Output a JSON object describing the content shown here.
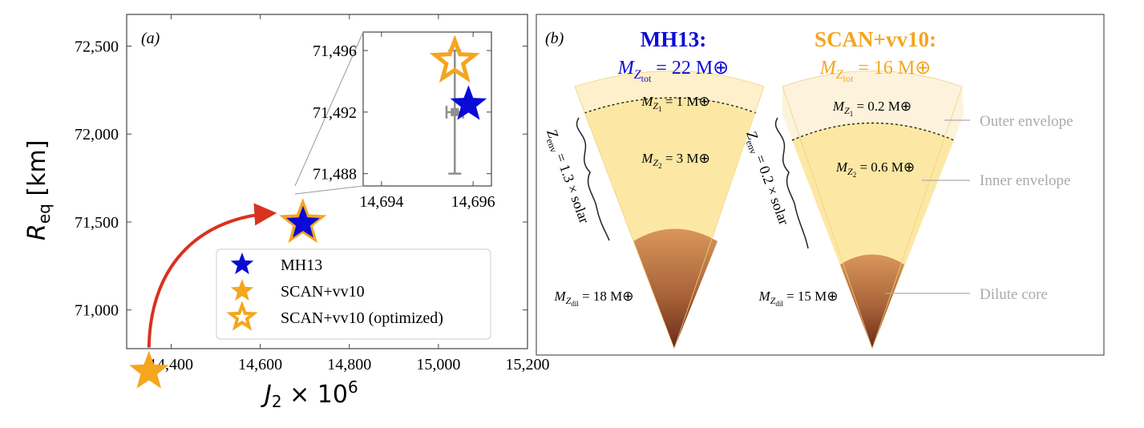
{
  "colors": {
    "mh13": "#0a0ad6",
    "scan": "#f5a51e",
    "arrow": "#d83220",
    "error": "#8f8f8f",
    "label_gray": "#aaaaaa"
  },
  "panel_a": {
    "label": "(a)",
    "xlabel_main": "J",
    "xlabel_sub": "2",
    "xlabel_rest": " × 10",
    "xlabel_sup": "6",
    "ylabel_main": "R",
    "ylabel_sub": "eq",
    "ylabel_rest": " [km]",
    "legend": [
      {
        "label": "MH13",
        "marker": "star-filled-blue"
      },
      {
        "label": "SCAN+vv10",
        "marker": "star-filled-orange"
      },
      {
        "label": "SCAN+vv10 (optimized)",
        "marker": "star-open-orange"
      }
    ]
  },
  "chart_data": [
    {
      "type": "scatter",
      "title": "",
      "xlabel": "J2 × 10^6",
      "ylabel": "R_eq [km]",
      "xlim": [
        14300,
        15200
      ],
      "ylim": [
        70780,
        72680
      ],
      "xticks": [
        14400,
        14600,
        14800,
        15000,
        15200
      ],
      "xtick_labels": [
        "14,400",
        "14,600",
        "14,800",
        "15,000",
        "15,200"
      ],
      "yticks": [
        71000,
        71500,
        72000,
        72500
      ],
      "ytick_labels": [
        "71,000",
        "71,500",
        "72,000",
        "72,500"
      ],
      "series": [
        {
          "name": "MH13",
          "x": [
            14696
          ],
          "y": [
            71492
          ]
        },
        {
          "name": "SCAN+vv10",
          "x": [
            14350
          ],
          "y": [
            70650
          ]
        },
        {
          "name": "SCAN+vv10 (optimized)",
          "x": [
            14695.5
          ],
          "y": [
            71495
          ]
        }
      ],
      "legend_position": "bottom-right",
      "annotation": "arrow from SCAN+vv10 to SCAN+vv10 (optimized)"
    },
    {
      "type": "scatter",
      "title": "inset",
      "xlim": [
        14693.6,
        14696.4
      ],
      "ylim": [
        71487.2,
        71497.2
      ],
      "xticks": [
        14694,
        14696
      ],
      "xtick_labels": [
        "14,694",
        "14,696"
      ],
      "yticks": [
        71488,
        71492,
        71496
      ],
      "ytick_labels": [
        "71,488",
        "71,492",
        "71,496"
      ],
      "series": [
        {
          "name": "MH13",
          "x": [
            14695.9
          ],
          "y": [
            71492.5
          ]
        },
        {
          "name": "SCAN+vv10 (optimized)",
          "x": [
            14695.6
          ],
          "y": [
            71495.3
          ]
        },
        {
          "name": "observed",
          "x": [
            14695.6
          ],
          "y": [
            71492.0
          ],
          "xerr": 0.18,
          "yerr": 4.0
        }
      ]
    }
  ],
  "panel_b": {
    "label": "(b)",
    "models": [
      {
        "name": "MH13:",
        "total_prefix": "M",
        "total_sub": "Z",
        "total_subsub": "tot",
        "total_value": " = 22 M",
        "outer": {
          "prefix": "M",
          "sub": "Z",
          "subsub": "1",
          "value": " = 1 M"
        },
        "inner": {
          "prefix": "M",
          "sub": "Z",
          "subsub": "2",
          "value": " = 3 M"
        },
        "core": {
          "prefix": "M",
          "sub": "Z",
          "subsub": "dil",
          "value": " = 18 M"
        },
        "zenv": "Z",
        "zenv_sub": "env",
        "zenv_value": " = 1.3 × solar"
      },
      {
        "name": "SCAN+vv10:",
        "total_prefix": "M",
        "total_sub": "Z",
        "total_subsub": "tot",
        "total_value": " = 16 M",
        "outer": {
          "prefix": "M",
          "sub": "Z",
          "subsub": "1",
          "value": " = 0.2 M"
        },
        "inner": {
          "prefix": "M",
          "sub": "Z",
          "subsub": "2",
          "value": " = 0.6 M"
        },
        "core": {
          "prefix": "M",
          "sub": "Z",
          "subsub": "dil",
          "value": " = 15 M"
        },
        "zenv": "Z",
        "zenv_sub": "env",
        "zenv_value": " = 0.2 × solar"
      }
    ],
    "earth_symbol": "⊕",
    "layer_labels": {
      "outer": "Outer envelope",
      "inner": "Inner envelope",
      "core": "Dilute core"
    }
  }
}
